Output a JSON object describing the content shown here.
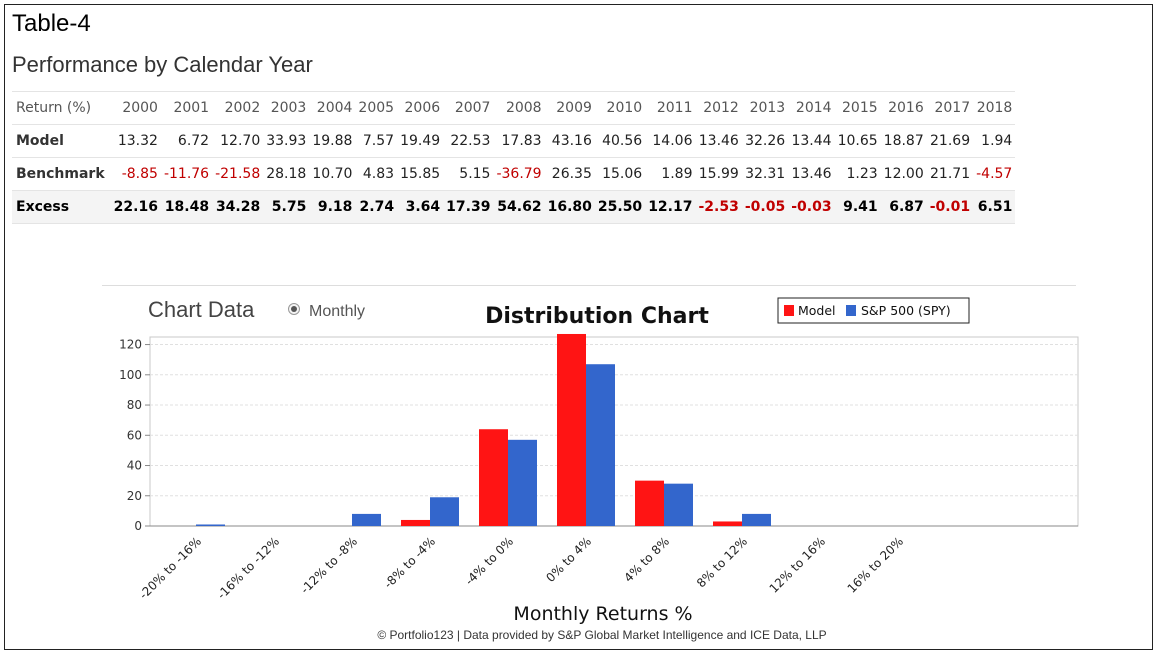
{
  "table": {
    "title": "Table-4",
    "subtitle": "Performance by Calendar Year",
    "header_label": "Return (%)",
    "years": [
      "2000",
      "2001",
      "2002",
      "2003",
      "2004",
      "2005",
      "2006",
      "2007",
      "2008",
      "2009",
      "2010",
      "2011",
      "2012",
      "2013",
      "2014",
      "2015",
      "2016",
      "2017",
      "2018"
    ],
    "rows": [
      {
        "label": "Model",
        "values": [
          "13.32",
          "6.72",
          "12.70",
          "33.93",
          "19.88",
          "7.57",
          "19.49",
          "22.53",
          "17.83",
          "43.16",
          "40.56",
          "14.06",
          "13.46",
          "32.26",
          "13.44",
          "10.65",
          "18.87",
          "21.69",
          "1.94"
        ]
      },
      {
        "label": "Benchmark",
        "values": [
          "-8.85",
          "-11.76",
          "-21.58",
          "28.18",
          "10.70",
          "4.83",
          "15.85",
          "5.15",
          "-36.79",
          "26.35",
          "15.06",
          "1.89",
          "15.99",
          "32.31",
          "13.46",
          "1.23",
          "12.00",
          "21.71",
          "-4.57"
        ]
      },
      {
        "label": "Excess",
        "values": [
          "22.16",
          "18.48",
          "34.28",
          "5.75",
          "9.18",
          "2.74",
          "3.64",
          "17.39",
          "54.62",
          "16.80",
          "25.50",
          "12.17",
          "-2.53",
          "-0.05",
          "-0.03",
          "9.41",
          "6.87",
          "-0.01",
          "6.51"
        ]
      }
    ]
  },
  "controls": {
    "chart_data_label": "Chart Data",
    "radio_label": "Monthly"
  },
  "footer": "© Portfolio123 | Data provided by S&P Global Market Intelligence and ICE Data, LLP",
  "chart_data": {
    "type": "bar",
    "title": "Distribution Chart",
    "xlabel": "Monthly Returns %",
    "ylabel": "",
    "ylim": [
      0,
      125
    ],
    "yticks": [
      0,
      20,
      40,
      60,
      80,
      100,
      120
    ],
    "grid": true,
    "legend_position": "top-right",
    "categories": [
      "-20% to -16%",
      "-16% to -12%",
      "-12% to -8%",
      "-8% to -4%",
      "-4% to 0%",
      "0% to 4%",
      "4% to 8%",
      "8% to 12%",
      "12% to 16%",
      "16% to 20%"
    ],
    "series": [
      {
        "name": "Model",
        "color": "#ff1414",
        "values": [
          0,
          0,
          0,
          4,
          64,
          127,
          30,
          3,
          0,
          0
        ]
      },
      {
        "name": "S&P 500 (SPY)",
        "color": "#3366cc",
        "values": [
          1,
          0,
          8,
          19,
          57,
          107,
          28,
          8,
          0,
          0
        ]
      }
    ]
  }
}
